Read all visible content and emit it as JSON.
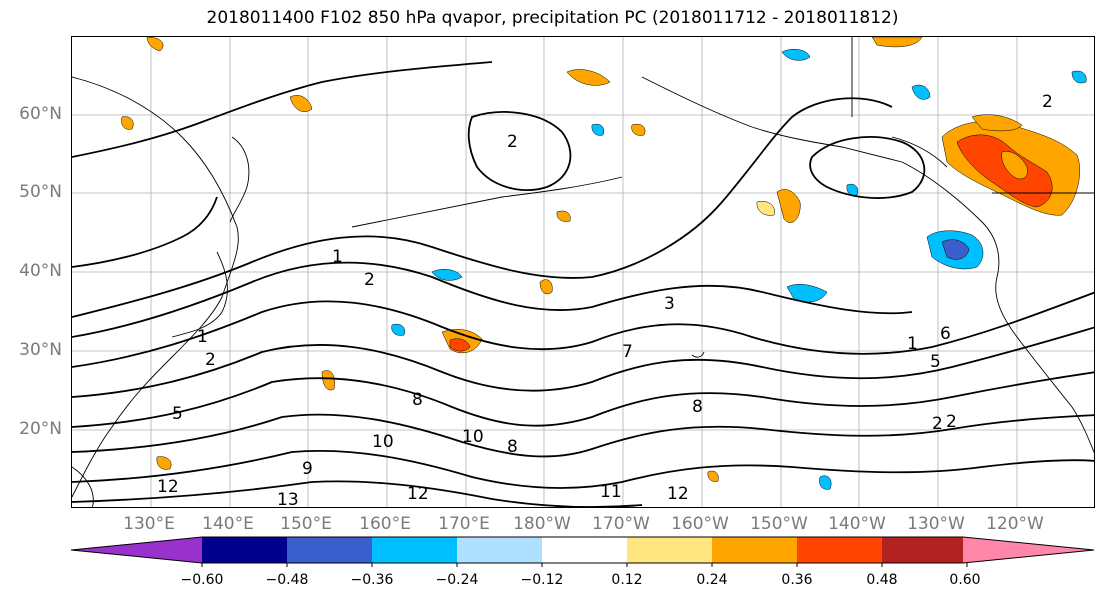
{
  "title": "2018011400 F102 850 hPa qvapor, precipitation PC (2018011712 - 2018011812)",
  "lat_labels": [
    "60°N",
    "50°N",
    "40°N",
    "30°N",
    "20°N"
  ],
  "lon_labels": [
    "130°E",
    "140°E",
    "150°E",
    "160°E",
    "170°E",
    "180°W",
    "170°W",
    "160°W",
    "150°W",
    "140°W",
    "130°W",
    "120°W"
  ],
  "contour_labels": [
    "1",
    "2",
    "2",
    "3",
    "1",
    "2",
    "5",
    "8",
    "10",
    "12",
    "12",
    "13",
    "12",
    "11",
    "10",
    "8",
    "8",
    "2",
    "1",
    "6",
    "5",
    "7",
    "2",
    "2",
    "9"
  ],
  "colorbar": {
    "ticks": [
      "−0.60",
      "−0.48",
      "−0.36",
      "−0.24",
      "−0.12",
      "0.12",
      "0.24",
      "0.36",
      "0.48",
      "0.60"
    ],
    "colors": [
      "#9932cc",
      "#00008b",
      "#3a5fcd",
      "#00bfff",
      "#b0e0ff",
      "#ffffff",
      "#ffe680",
      "#ffa500",
      "#ff4500",
      "#b22222",
      "#ff88aa"
    ]
  }
}
